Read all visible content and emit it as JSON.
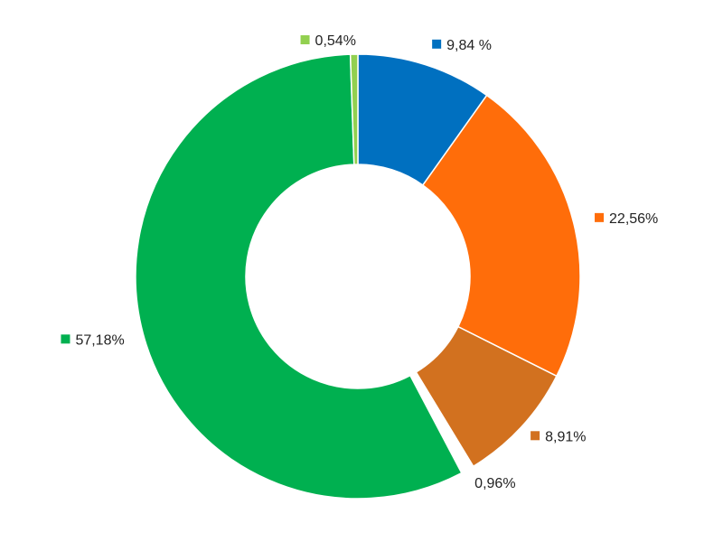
{
  "chart_data": {
    "type": "pie",
    "variant": "donut",
    "legend": "none",
    "slices": [
      {
        "value": 9.84,
        "label": "9,84 %",
        "color": "#0070C0"
      },
      {
        "value": 22.56,
        "label": "22,56%",
        "color": "#FF6D0A"
      },
      {
        "value": 8.91,
        "label": "8,91%",
        "color": "#D2711F"
      },
      {
        "value": 0.96,
        "label": "0,96%",
        "color": "#FFFFFF"
      },
      {
        "value": 57.18,
        "label": "57,18%",
        "color": "#00B050"
      },
      {
        "value": 0.54,
        "label": "0,54%",
        "color": "#92D050"
      }
    ]
  }
}
